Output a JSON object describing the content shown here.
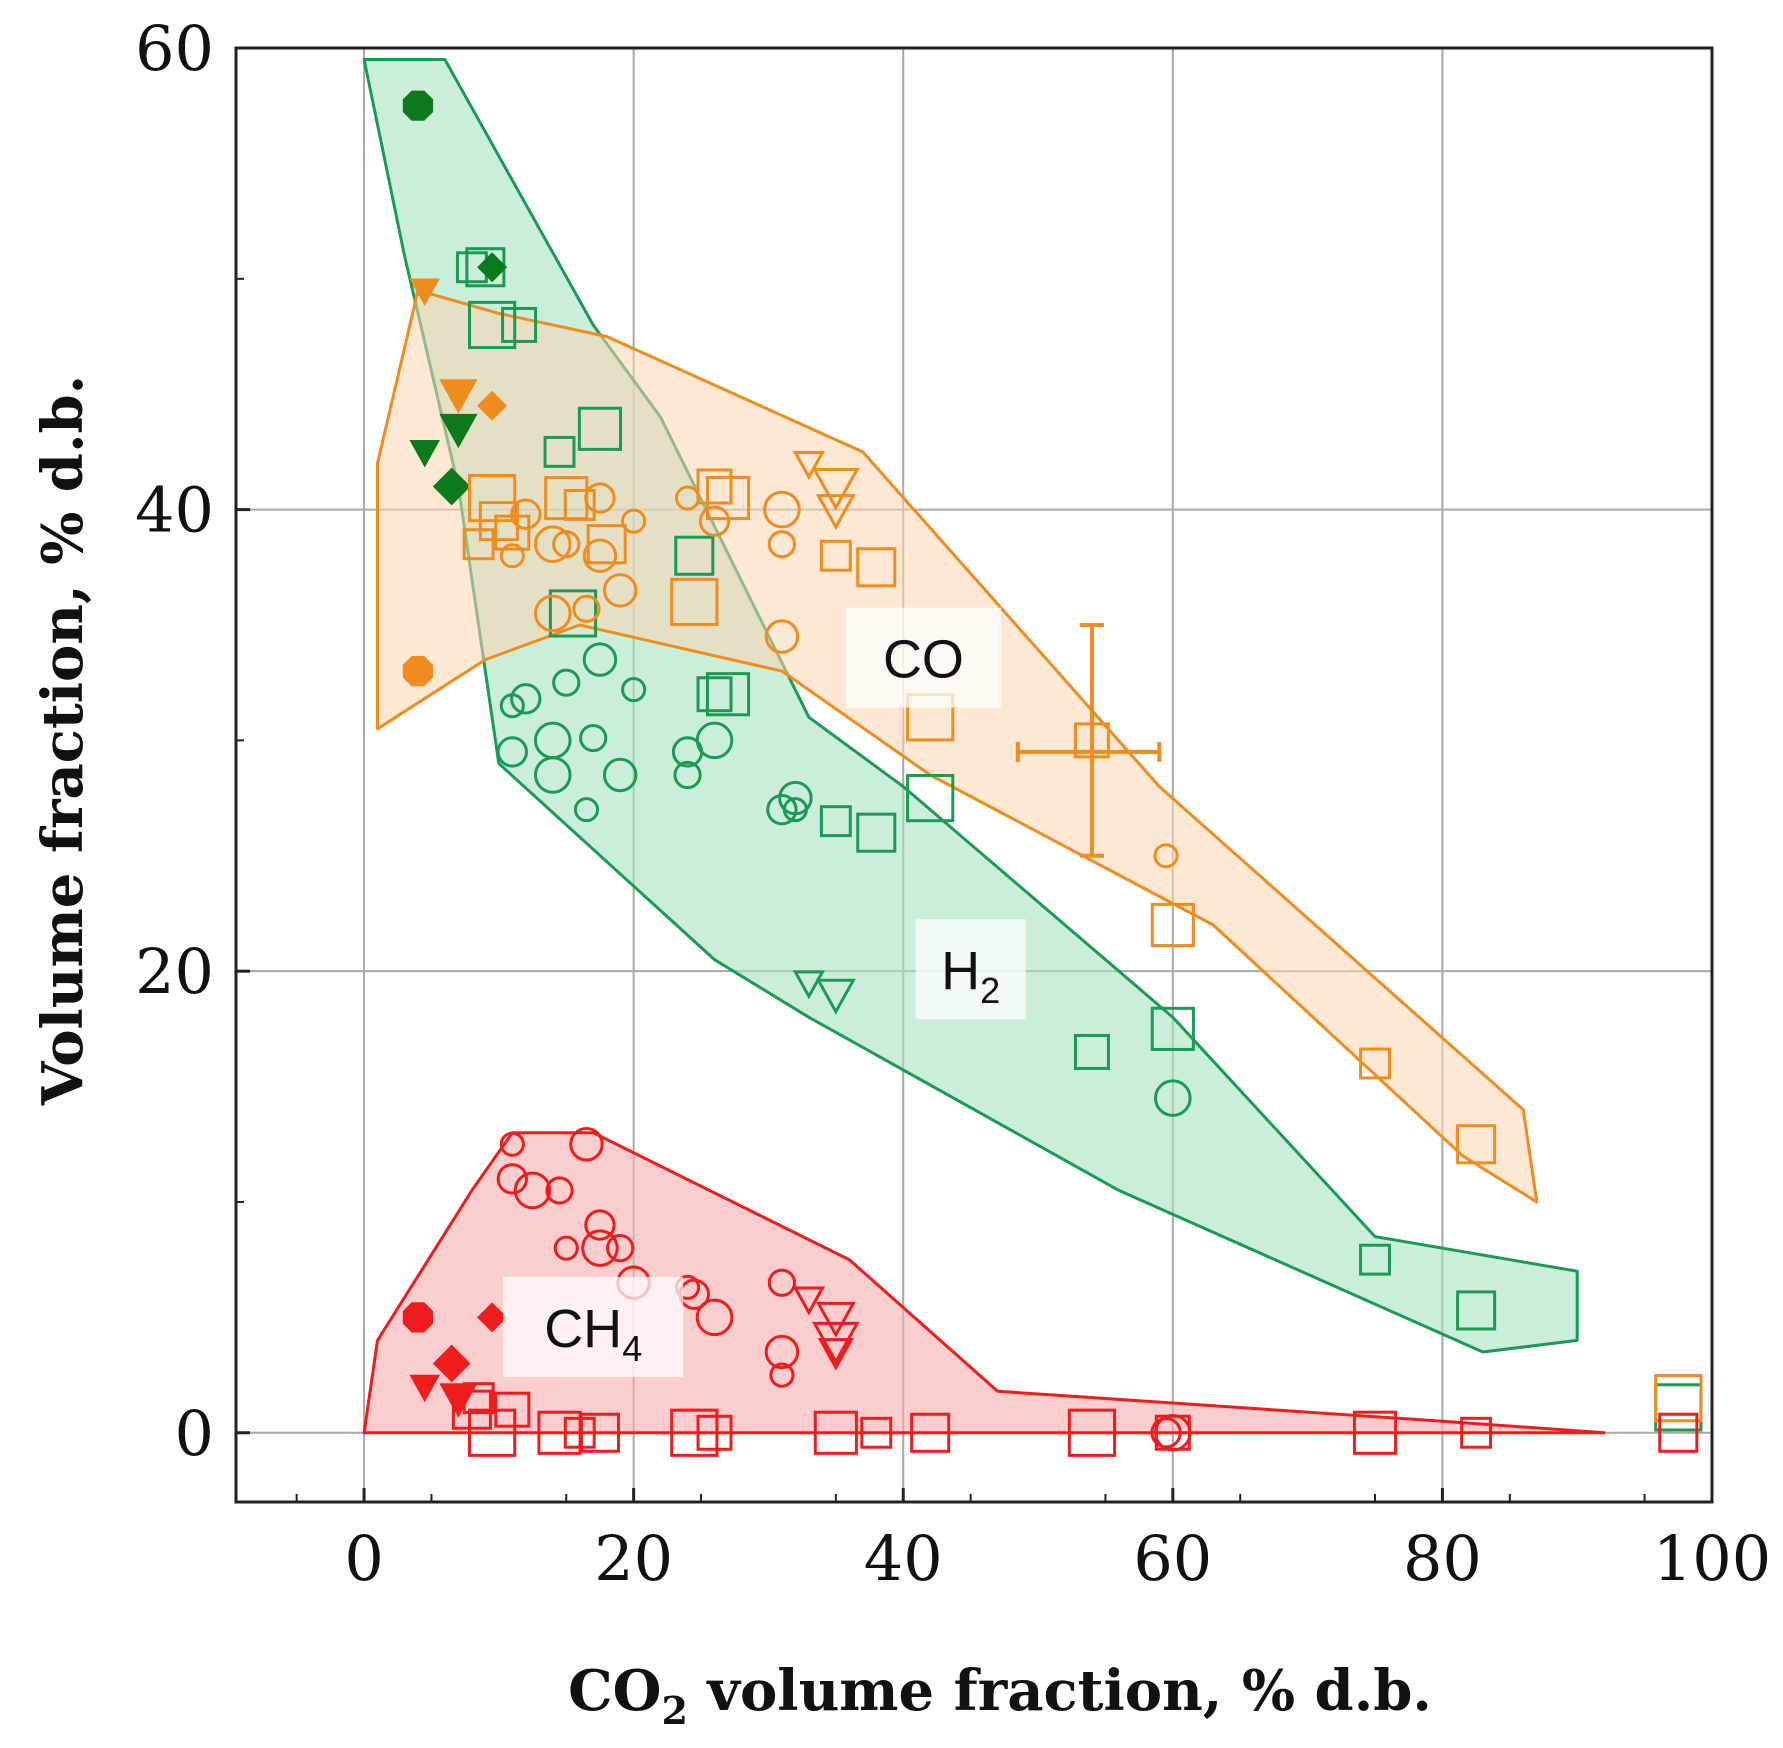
{
  "chart_data": {
    "type": "scatter",
    "title": "",
    "xlabel": "CO",
    "xlabel_subscript": "2",
    "xlabel_suffix": " volume fraction, % d.b.",
    "ylabel": "Volume fraction, % d.b.",
    "xlim": [
      -9.5,
      100
    ],
    "ylim": [
      -3,
      60
    ],
    "x_ticks": [
      "0",
      "20",
      "40",
      "60",
      "80",
      "100"
    ],
    "y_ticks": [
      "0",
      "20",
      "40",
      "60"
    ],
    "grid": true,
    "colors": {
      "H2": "#1a9a55",
      "CO": "#f08c1e",
      "CH4": "#ee1c1c",
      "H2_fill": "#a8e2c3",
      "CO_fill": "#fbd6b0",
      "CH4_fill": "#f6aeae",
      "dark_green": "#0a7a1a"
    },
    "regions": [
      {
        "name": "CO",
        "label": "CO",
        "label_at": [
          41.5,
          33.5
        ],
        "polygon": [
          [
            1,
            42
          ],
          [
            4,
            49.5
          ],
          [
            10,
            48.5
          ],
          [
            18,
            47.5
          ],
          [
            37,
            42.5
          ],
          [
            59,
            28
          ],
          [
            86,
            14
          ],
          [
            87,
            10
          ],
          [
            81.5,
            12
          ],
          [
            63,
            22
          ],
          [
            42,
            28.5
          ],
          [
            31,
            33
          ],
          [
            16,
            35
          ],
          [
            9,
            33.5
          ],
          [
            1,
            30.5
          ]
        ]
      },
      {
        "name": "H2",
        "label": "H2",
        "label_text": "H",
        "label_subscript": "2",
        "label_at": [
          45,
          20
        ],
        "polygon": [
          [
            0,
            59.5
          ],
          [
            6,
            59.5
          ],
          [
            17,
            48
          ],
          [
            22,
            44
          ],
          [
            33,
            31
          ],
          [
            40,
            28
          ],
          [
            60,
            18
          ],
          [
            75,
            8.5
          ],
          [
            90,
            7
          ],
          [
            90,
            4
          ],
          [
            83,
            3.5
          ],
          [
            56,
            10.5
          ],
          [
            33,
            18
          ],
          [
            26,
            20.5
          ],
          [
            10,
            29
          ],
          [
            7,
            41
          ],
          [
            3,
            51
          ]
        ]
      },
      {
        "name": "CH4",
        "label": "CH",
        "label_text": "CH",
        "label_subscript": "4",
        "label_at": [
          17,
          4.5
        ],
        "polygon": [
          [
            0,
            0
          ],
          [
            1,
            4
          ],
          [
            8,
            10.5
          ],
          [
            11,
            13
          ],
          [
            17,
            13
          ],
          [
            36,
            7.5
          ],
          [
            47,
            1.8
          ],
          [
            80,
            0.5
          ],
          [
            92,
            0
          ],
          [
            0,
            0
          ]
        ]
      }
    ],
    "series": [
      {
        "species": "H2",
        "marker": "circle",
        "points": [
          [
            11,
            31.5
          ],
          [
            12,
            31.8
          ],
          [
            14,
            30
          ],
          [
            15,
            32.5
          ],
          [
            17.5,
            33.5
          ],
          [
            20,
            32.2
          ],
          [
            11,
            29.5
          ],
          [
            14,
            28.5
          ],
          [
            17,
            30.1
          ],
          [
            19,
            28.5
          ],
          [
            16.5,
            27
          ],
          [
            24,
            29.5
          ],
          [
            26,
            30
          ],
          [
            24,
            28.5
          ],
          [
            32,
            27.5
          ],
          [
            32,
            27
          ],
          [
            31,
            27
          ],
          [
            60,
            14.5
          ]
        ]
      },
      {
        "species": "H2",
        "marker": "square",
        "points": [
          [
            8,
            50.5
          ],
          [
            9,
            50.5
          ],
          [
            9.5,
            48
          ],
          [
            11.5,
            48
          ],
          [
            17.5,
            43.5
          ],
          [
            14.5,
            42.5
          ],
          [
            24.5,
            38
          ],
          [
            15.5,
            35.5
          ],
          [
            26,
            32
          ],
          [
            27,
            32
          ],
          [
            35,
            26.5
          ],
          [
            38,
            26
          ],
          [
            42,
            27.5
          ],
          [
            54,
            16.5
          ],
          [
            60,
            17.5
          ],
          [
            75,
            7.5
          ],
          [
            82.5,
            5.3
          ],
          [
            97.5,
            1.1
          ]
        ]
      },
      {
        "species": "H2",
        "marker": "triangle-down",
        "points": [
          [
            33,
            19.5
          ],
          [
            35,
            19
          ]
        ]
      },
      {
        "species": "H2",
        "marker": "filled-octagon",
        "points": [
          [
            4,
            57.5
          ]
        ]
      },
      {
        "species": "H2",
        "marker": "filled-diamond",
        "points": [
          [
            9.5,
            50.5
          ],
          [
            6.5,
            41
          ]
        ]
      },
      {
        "species": "H2",
        "marker": "filled-triangle-down",
        "points": [
          [
            4.5,
            42.5
          ],
          [
            7,
            43.5
          ]
        ]
      },
      {
        "species": "CO",
        "marker": "circle",
        "points": [
          [
            11,
            38
          ],
          [
            12,
            39.8
          ],
          [
            14,
            38.5
          ],
          [
            15,
            38.5
          ],
          [
            17.5,
            38
          ],
          [
            20,
            39.5
          ],
          [
            17.5,
            40.5
          ],
          [
            14,
            35.5
          ],
          [
            16.5,
            35.7
          ],
          [
            19,
            36.5
          ],
          [
            24,
            40.5
          ],
          [
            26,
            39.5
          ],
          [
            31,
            40
          ],
          [
            31,
            38.5
          ],
          [
            31,
            34.5
          ],
          [
            59.5,
            25
          ]
        ]
      },
      {
        "species": "CO",
        "marker": "square",
        "points": [
          [
            8.5,
            38.5
          ],
          [
            10,
            39.5
          ],
          [
            9.5,
            40.5
          ],
          [
            11,
            39
          ],
          [
            15,
            40.5
          ],
          [
            16,
            40.2
          ],
          [
            18,
            38.5
          ],
          [
            24.5,
            36
          ],
          [
            26,
            41
          ],
          [
            27,
            40.5
          ],
          [
            35,
            38
          ],
          [
            38,
            37.5
          ],
          [
            42,
            31
          ],
          [
            54,
            30
          ],
          [
            60,
            22
          ],
          [
            75,
            16
          ],
          [
            82.5,
            12.5
          ],
          [
            97.5,
            1.5
          ]
        ]
      },
      {
        "species": "CO",
        "marker": "triangle-down",
        "points": [
          [
            33,
            42
          ],
          [
            35,
            40
          ],
          [
            35,
            41
          ]
        ]
      },
      {
        "species": "CO",
        "marker": "filled-octagon",
        "points": [
          [
            4,
            33
          ]
        ]
      },
      {
        "species": "CO",
        "marker": "filled-diamond",
        "points": [
          [
            9.5,
            44.5
          ]
        ]
      },
      {
        "species": "CO",
        "marker": "filled-triangle-down",
        "points": [
          [
            4.5,
            49.5
          ],
          [
            7,
            45
          ]
        ]
      },
      {
        "species": "CH4",
        "marker": "circle",
        "points": [
          [
            11,
            12.5
          ],
          [
            11,
            11
          ],
          [
            12.5,
            10.5
          ],
          [
            14.5,
            10.5
          ],
          [
            16.5,
            12.5
          ],
          [
            15,
            8
          ],
          [
            17.5,
            9
          ],
          [
            17.5,
            8
          ],
          [
            19,
            8
          ],
          [
            20,
            6.5
          ],
          [
            24,
            6.3
          ],
          [
            24.5,
            6
          ],
          [
            26,
            5
          ],
          [
            31,
            6.5
          ],
          [
            31,
            3.5
          ],
          [
            31,
            2.5
          ],
          [
            59.5,
            0
          ],
          [
            60,
            0
          ]
        ]
      },
      {
        "species": "CH4",
        "marker": "square",
        "points": [
          [
            8.5,
            1.5
          ],
          [
            8,
            1
          ],
          [
            9.5,
            0
          ],
          [
            11,
            1
          ],
          [
            14.5,
            0
          ],
          [
            16,
            0
          ],
          [
            17.5,
            0
          ],
          [
            24.5,
            0
          ],
          [
            26,
            0
          ],
          [
            35,
            0
          ],
          [
            38,
            0
          ],
          [
            42,
            0
          ],
          [
            54,
            0
          ],
          [
            60,
            0
          ],
          [
            75,
            0
          ],
          [
            82.5,
            0
          ],
          [
            97.5,
            0
          ]
        ]
      },
      {
        "species": "CH4",
        "marker": "triangle-down",
        "points": [
          [
            33,
            5.8
          ],
          [
            35,
            5
          ],
          [
            35,
            4
          ],
          [
            35,
            3.5
          ]
        ]
      },
      {
        "species": "CH4",
        "marker": "filled-octagon",
        "points": [
          [
            4,
            5
          ]
        ]
      },
      {
        "species": "CH4",
        "marker": "filled-diamond",
        "points": [
          [
            9.5,
            5
          ],
          [
            6.5,
            3
          ]
        ]
      },
      {
        "species": "CH4",
        "marker": "filled-triangle-down",
        "points": [
          [
            4.5,
            2
          ],
          [
            7,
            1.5
          ]
        ]
      }
    ],
    "error_bar": {
      "species": "CO",
      "x": 54,
      "y": 29.5,
      "x_range": [
        48.5,
        59
      ],
      "y_range": [
        25,
        35
      ]
    }
  }
}
